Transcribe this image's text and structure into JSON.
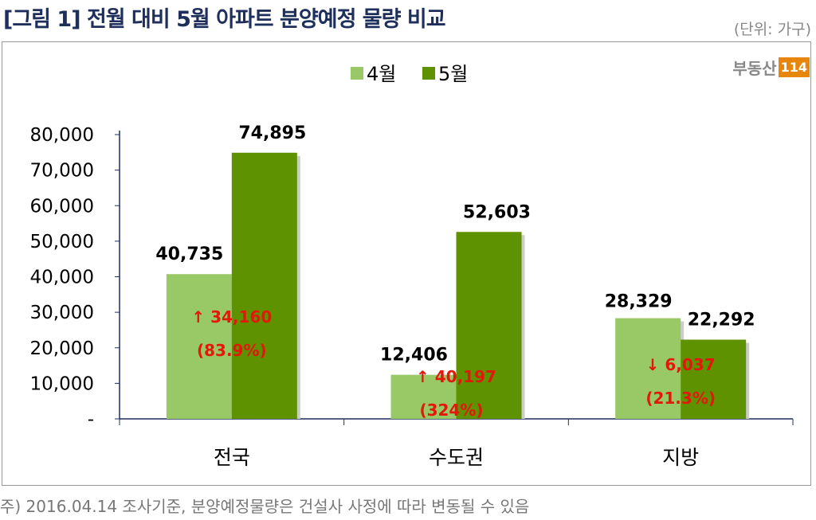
{
  "title": "[그림 1] 전월 대비 5월 아파트 분양예정 물량 비교",
  "unit": "(단위: 가구)",
  "logo": {
    "text": "부동산",
    "badge": "114"
  },
  "footnote": "주) 2016.04.14 조사기준, 분양예정물량은 건설사 사정에 따라 변동될 수 있음",
  "chart_data": {
    "type": "bar",
    "categories": [
      "전국",
      "수도권",
      "지방"
    ],
    "series": [
      {
        "name": "4월",
        "values": [
          40735,
          12406,
          28329
        ],
        "labels": [
          "40,735",
          "12,406",
          "28,329"
        ],
        "color": "#99c866"
      },
      {
        "name": "5월",
        "values": [
          74895,
          52603,
          22292
        ],
        "labels": [
          "74,895",
          "52,603",
          "22,292"
        ],
        "color": "#5f9200"
      }
    ],
    "annotations": [
      {
        "change": "↑ 34,160",
        "pct": "(83.9%)"
      },
      {
        "change": "↑ 40,197",
        "pct": "(324%)"
      },
      {
        "change": "↓ 6,037",
        "pct": "(21.3%)"
      }
    ],
    "annotation_color": "#e3170a",
    "yticks": [
      "-",
      "10,000",
      "20,000",
      "30,000",
      "40,000",
      "50,000",
      "60,000",
      "70,000",
      "80,000"
    ],
    "ylim": [
      0,
      80000
    ],
    "legend": "top-center"
  }
}
